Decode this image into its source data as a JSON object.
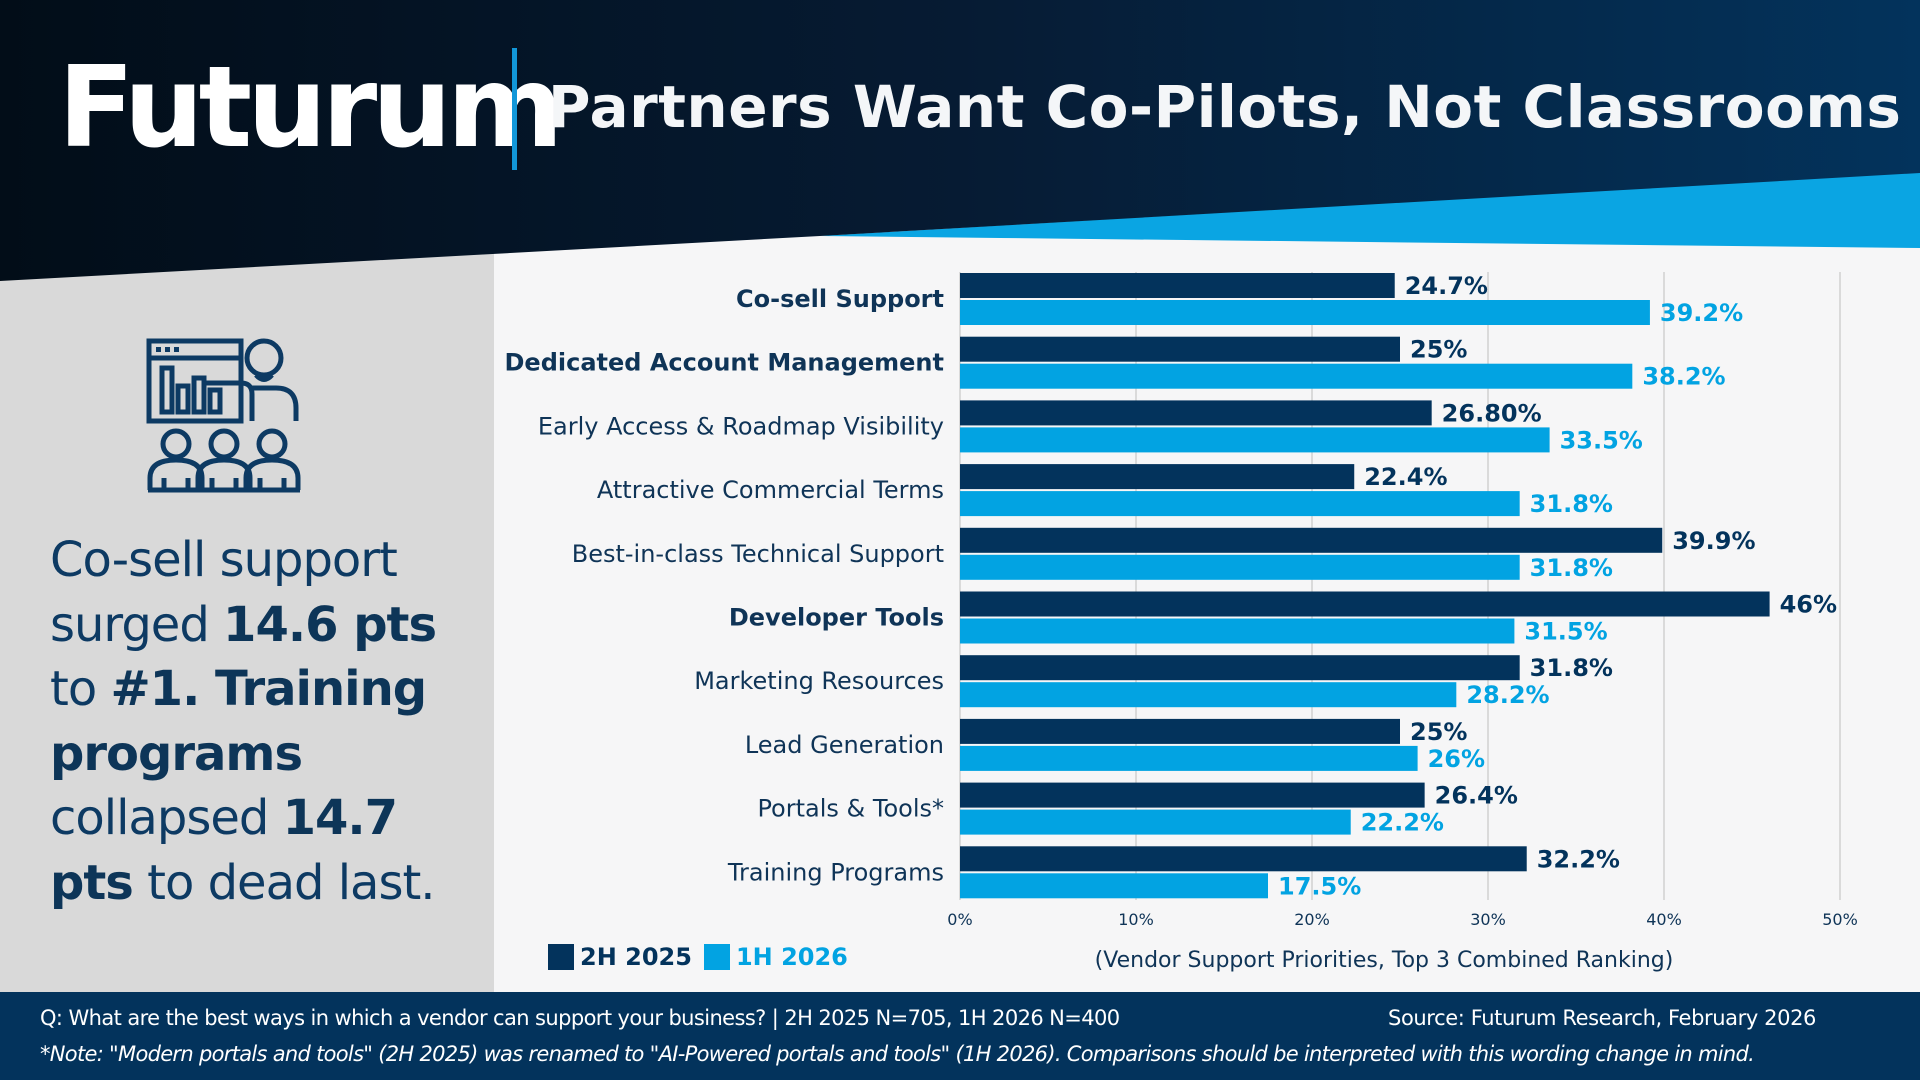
{
  "header": {
    "logo": "Futurum",
    "title": "Partners Want Co-Pilots, Not Classrooms"
  },
  "colors": {
    "header_dark": "#041424",
    "header_navy": "#03335c",
    "accent_blue": "#0aa5e3",
    "series_2h2025": "#03335c",
    "series_1h2026": "#02a3e2",
    "left_panel": "#d9d9d9",
    "chart_bg": "#f6f6f7"
  },
  "left_panel": {
    "icon": "presentation-audience-icon",
    "summary_parts": [
      {
        "text": "Co-sell support surged ",
        "bold": false
      },
      {
        "text": "14.6 pts",
        "bold": true
      },
      {
        "text": " to ",
        "bold": false
      },
      {
        "text": "#1. Training programs",
        "bold": true
      },
      {
        "text": " collapsed ",
        "bold": false
      },
      {
        "text": "14.7 pts",
        "bold": true
      },
      {
        "text": " to dead last.",
        "bold": false
      }
    ]
  },
  "legend": {
    "items": [
      {
        "label": "2H 2025",
        "color": "#03335c"
      },
      {
        "label": "1H 2026",
        "color": "#02a3e2"
      }
    ]
  },
  "chart_data": {
    "type": "bar",
    "orientation": "horizontal",
    "title": "Partners Want Co-Pilots, Not Classrooms",
    "xlabel": "(Vendor Support Priorities, Top 3 Combined Ranking)",
    "ylabel": "",
    "xlim": [
      0,
      50
    ],
    "x_ticks": [
      "0%",
      "10%",
      "20%",
      "30%",
      "40%",
      "50%"
    ],
    "x_tick_values": [
      0,
      10,
      20,
      30,
      40,
      50
    ],
    "grid": true,
    "legend_position": "bottom-left",
    "categories": [
      "Co-sell Support",
      "Dedicated Account Management",
      "Early Access & Roadmap Visibility",
      "Attractive Commercial Terms",
      "Best-in-class Technical Support",
      "Developer Tools",
      "Marketing Resources",
      "Lead Generation",
      "Portals & Tools*",
      "Training Programs"
    ],
    "bold_categories": [
      true,
      true,
      false,
      false,
      false,
      true,
      false,
      false,
      false,
      false
    ],
    "series": [
      {
        "name": "2H 2025",
        "values": [
          24.7,
          25,
          26.8,
          22.4,
          39.9,
          46,
          31.8,
          25,
          26.4,
          32.2
        ],
        "labels": [
          "24.7%",
          "25%",
          "26.80%",
          "22.4%",
          "39.9%",
          "46%",
          "31.8%",
          "25%",
          "26.4%",
          "32.2%"
        ]
      },
      {
        "name": "1H 2026",
        "values": [
          39.2,
          38.2,
          33.5,
          31.8,
          31.8,
          31.5,
          28.2,
          26,
          22.2,
          17.5
        ],
        "labels": [
          "39.2%",
          "38.2%",
          "33.5%",
          "31.8%",
          "31.8%",
          "31.5%",
          "28.2%",
          "26%",
          "22.2%",
          "17.5%"
        ]
      }
    ]
  },
  "footer": {
    "question": "Q: What are the best ways in which a vendor can support your business? | 2H 2025 N=705, 1H 2026 N=400",
    "source": "Source: Futurum Research, February 2026",
    "note": "*Note: \"Modern portals and tools\" (2H 2025) was renamed to \"AI-Powered portals and tools\" (1H 2026). Comparisons should be interpreted with this wording change in mind."
  }
}
